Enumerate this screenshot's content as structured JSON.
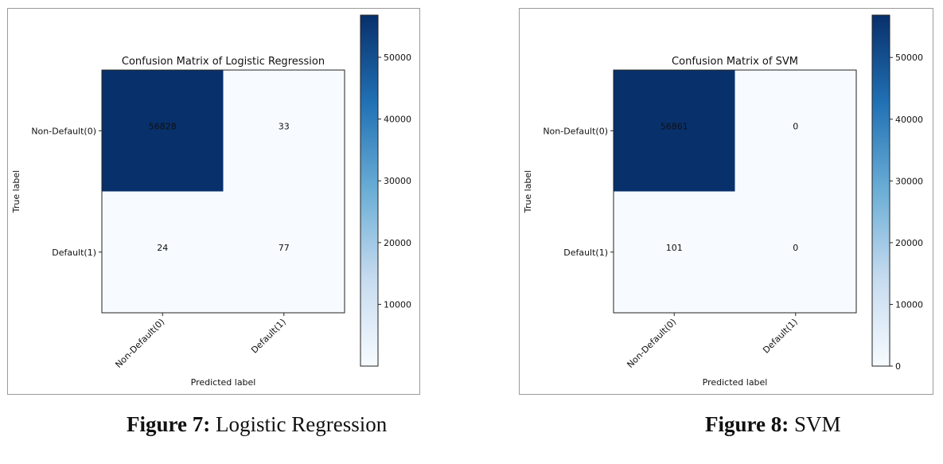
{
  "chart_data": [
    {
      "type": "heatmap",
      "title": "Confusion Matrix of Logistic Regression",
      "xlabel": "Predicted label",
      "ylabel": "True label",
      "x_ticks": [
        "Non-Default(0)",
        "Default(1)"
      ],
      "y_ticks": [
        "Non-Default(0)",
        "Default(1)"
      ],
      "values": [
        [
          56828,
          33
        ],
        [
          24,
          77
        ]
      ],
      "colorbar": {
        "min": 0,
        "max": 56828,
        "ticks": [
          10000,
          20000,
          30000,
          40000,
          50000
        ]
      }
    },
    {
      "type": "heatmap",
      "title": "Confusion Matrix of SVM",
      "xlabel": "Predicted label",
      "ylabel": "True label",
      "x_ticks": [
        "Non-Default(0)",
        "Default(1)"
      ],
      "y_ticks": [
        "Non-Default(0)",
        "Default(1)"
      ],
      "values": [
        [
          56861,
          0
        ],
        [
          101,
          0
        ]
      ],
      "colorbar": {
        "min": 0,
        "max": 56861,
        "ticks": [
          0,
          10000,
          20000,
          30000,
          40000,
          50000
        ]
      }
    }
  ],
  "captions": [
    {
      "label": "Figure 7:",
      "text": "Logistic Regression"
    },
    {
      "label": "Figure 8:",
      "text": "SVM"
    }
  ],
  "colors": {
    "low": "#f7fbff",
    "high": "#08306b"
  }
}
